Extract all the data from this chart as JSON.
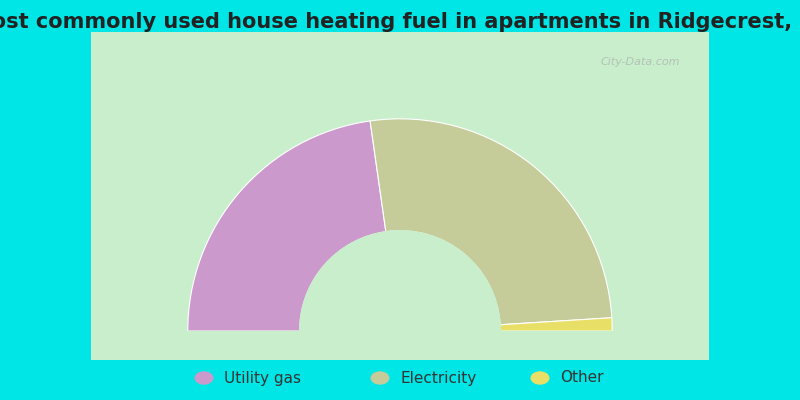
{
  "title": "Most commonly used house heating fuel in apartments in Ridgecrest, LA",
  "slices": [
    {
      "label": "Utility gas",
      "value": 45.5,
      "color": "#cc99cc"
    },
    {
      "label": "Electricity",
      "value": 52.5,
      "color": "#c5cc99"
    },
    {
      "label": "Other",
      "value": 2.0,
      "color": "#e8e066"
    }
  ],
  "bg_color_outer": "#00e5e5",
  "bg_color_inner": "#c8eecc",
  "title_fontsize": 15,
  "legend_fontsize": 11,
  "watermark": "City-Data.com"
}
